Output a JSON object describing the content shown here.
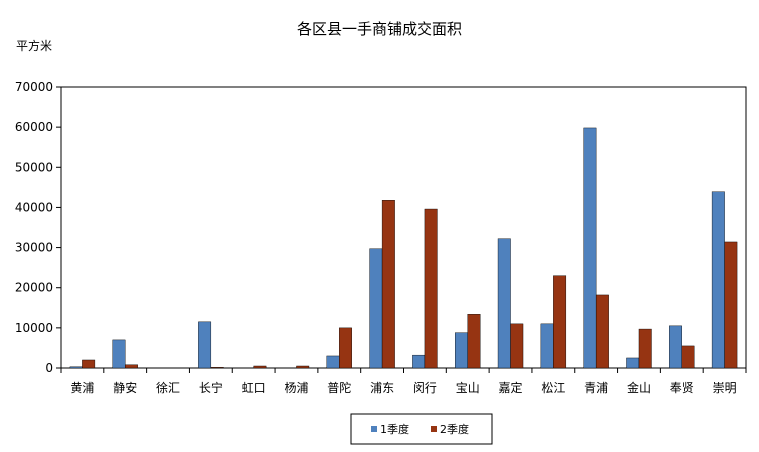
{
  "chart_data": {
    "type": "bar",
    "title": "各区县一手商铺成交面积",
    "ylabel": "平方米",
    "xlabel": "",
    "ylim": [
      0,
      70000
    ],
    "yticks": [
      "0",
      "10000",
      "20000",
      "30000",
      "40000",
      "50000",
      "60000",
      "70000"
    ],
    "categories": [
      "黄浦",
      "静安",
      "徐汇",
      "长宁",
      "虹口",
      "杨浦",
      "普陀",
      "浦东",
      "闵行",
      "宝山",
      "嘉定",
      "松江",
      "青浦",
      "金山",
      "奉贤",
      "崇明"
    ],
    "series": [
      {
        "name": "1季度",
        "color": "#4F81BD",
        "values": [
          300,
          7000,
          0,
          11500,
          0,
          0,
          3000,
          29700,
          3200,
          8800,
          32200,
          11000,
          59800,
          2500,
          10500,
          43900
        ]
      },
      {
        "name": "2季度",
        "color": "#963412",
        "values": [
          2000,
          800,
          0,
          200,
          500,
          500,
          10000,
          41800,
          39600,
          13400,
          11000,
          23000,
          18200,
          9700,
          5500,
          31400
        ]
      }
    ],
    "grid": false,
    "legend_position": "bottom"
  }
}
